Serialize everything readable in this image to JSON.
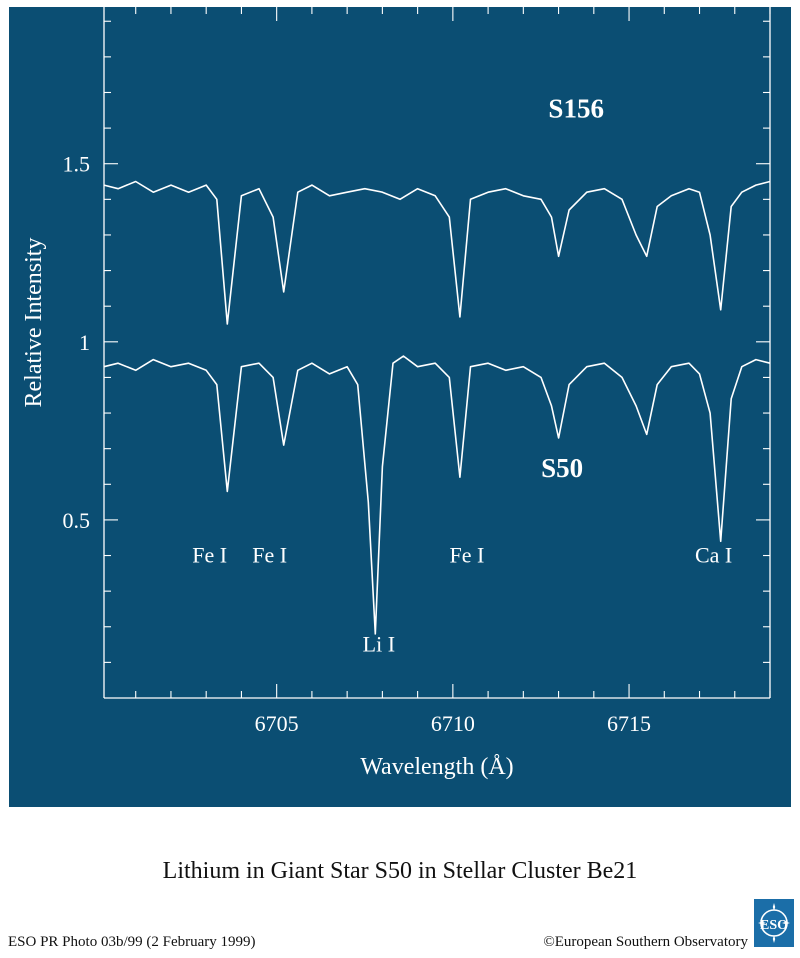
{
  "colors": {
    "panel_bg": "#0b4e73",
    "foreground": "#ffffff",
    "logo_bg": "#1b6ea8"
  },
  "caption": "Lithium in Giant Star S50 in Stellar Cluster Be21",
  "footer": {
    "left": "ESO PR Photo 03b/99 (2 February 1999)",
    "right": "©European Southern Observatory"
  },
  "logo": {
    "icon": "eso-logo-icon",
    "text": "ESO"
  },
  "chart_data": {
    "type": "line",
    "title": "",
    "xlabel": "Wavelength (Å)",
    "ylabel": "Relative Intensity",
    "xlim": [
      6700.1,
      6719.0
    ],
    "ylim": [
      0.0,
      1.94
    ],
    "xticks": [
      6705,
      6710,
      6715
    ],
    "xtick_labels": [
      "6705",
      "6710",
      "6715"
    ],
    "yticks": [
      0.5,
      1.0,
      1.5
    ],
    "ytick_labels": [
      "0.5",
      "1",
      "1.5"
    ],
    "grid": false,
    "series_labels": [
      {
        "text": "S156",
        "x": 6713.5,
        "y": 1.63
      },
      {
        "text": "S50",
        "x": 6713.1,
        "y": 0.62
      }
    ],
    "line_annotations": [
      {
        "text": "Fe I",
        "x": 6703.1,
        "y": 0.38
      },
      {
        "text": "Fe I",
        "x": 6704.8,
        "y": 0.38
      },
      {
        "text": "Fe I",
        "x": 6710.4,
        "y": 0.38
      },
      {
        "text": "Ca I",
        "x": 6717.4,
        "y": 0.38
      },
      {
        "text": "Li I",
        "x": 6707.9,
        "y": 0.13
      }
    ],
    "series": [
      {
        "name": "S156",
        "x": [
          6700.1,
          6700.5,
          6701.0,
          6701.5,
          6702.0,
          6702.5,
          6703.0,
          6703.3,
          6703.6,
          6704.0,
          6704.5,
          6704.9,
          6705.2,
          6705.6,
          6706.0,
          6706.5,
          6707.0,
          6707.5,
          6708.0,
          6708.5,
          6709.0,
          6709.5,
          6709.9,
          6710.2,
          6710.5,
          6711.0,
          6711.5,
          6712.0,
          6712.5,
          6712.8,
          6713.0,
          6713.3,
          6713.8,
          6714.3,
          6714.8,
          6715.2,
          6715.5,
          6715.8,
          6716.2,
          6716.7,
          6717.0,
          6717.3,
          6717.6,
          6717.9,
          6718.2,
          6718.6,
          6719.0
        ],
        "y": [
          1.44,
          1.43,
          1.45,
          1.42,
          1.44,
          1.42,
          1.44,
          1.4,
          1.05,
          1.41,
          1.43,
          1.35,
          1.14,
          1.42,
          1.44,
          1.41,
          1.42,
          1.43,
          1.42,
          1.4,
          1.43,
          1.41,
          1.35,
          1.07,
          1.4,
          1.42,
          1.43,
          1.41,
          1.4,
          1.35,
          1.24,
          1.37,
          1.42,
          1.43,
          1.4,
          1.3,
          1.24,
          1.38,
          1.41,
          1.43,
          1.42,
          1.3,
          1.09,
          1.38,
          1.42,
          1.44,
          1.45
        ]
      },
      {
        "name": "S50",
        "x": [
          6700.1,
          6700.5,
          6701.0,
          6701.5,
          6702.0,
          6702.5,
          6703.0,
          6703.3,
          6703.6,
          6704.0,
          6704.5,
          6704.9,
          6705.2,
          6705.6,
          6706.0,
          6706.5,
          6707.0,
          6707.3,
          6707.6,
          6707.8,
          6708.0,
          6708.3,
          6708.6,
          6709.0,
          6709.5,
          6709.9,
          6710.2,
          6710.5,
          6711.0,
          6711.5,
          6712.0,
          6712.5,
          6712.8,
          6713.0,
          6713.3,
          6713.8,
          6714.3,
          6714.8,
          6715.2,
          6715.5,
          6715.8,
          6716.2,
          6716.7,
          6717.0,
          6717.3,
          6717.6,
          6717.9,
          6718.2,
          6718.6,
          6719.0
        ],
        "y": [
          0.93,
          0.94,
          0.92,
          0.95,
          0.93,
          0.94,
          0.92,
          0.88,
          0.58,
          0.93,
          0.94,
          0.9,
          0.71,
          0.92,
          0.94,
          0.91,
          0.93,
          0.88,
          0.55,
          0.18,
          0.65,
          0.94,
          0.96,
          0.93,
          0.94,
          0.9,
          0.62,
          0.93,
          0.94,
          0.92,
          0.93,
          0.9,
          0.82,
          0.73,
          0.88,
          0.93,
          0.94,
          0.9,
          0.82,
          0.74,
          0.88,
          0.93,
          0.94,
          0.91,
          0.8,
          0.44,
          0.84,
          0.93,
          0.95,
          0.94
        ]
      }
    ]
  }
}
